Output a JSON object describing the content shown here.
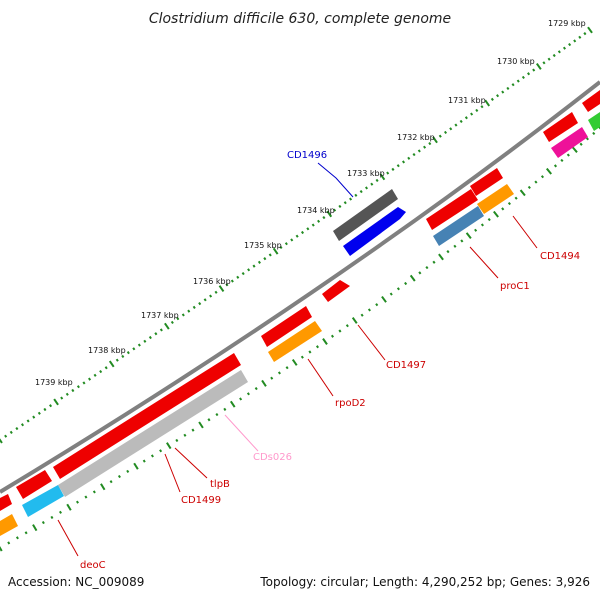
{
  "title": "Clostridium difficile 630, complete genome",
  "footer": {
    "accession": "Accession: NC_009089",
    "summary": "Topology: circular; Length: 4,290,252 bp; Genes: 3,926"
  },
  "ticks": [
    "1729 kbp",
    "1730 kbp",
    "1731 kbp",
    "1732 kbp",
    "1733 kbp",
    "1734 kbp",
    "1735 kbp",
    "1736 kbp",
    "1737 kbp",
    "1738 kbp",
    "1739 kbp"
  ],
  "colors": {
    "backbone": "#808080",
    "ruler": "#228b22",
    "cds_red": "#ee0000",
    "blue": "#0000ee",
    "dark_gray": "#555555",
    "light_gray": "#bbbbbb",
    "orange": "#ff9900",
    "steel_blue": "#4682b4",
    "cyan": "#22bbee",
    "magenta": "#ee1199",
    "green": "#33cc33",
    "label_red": "#cc0000",
    "label_blue": "#0000cc",
    "label_pink": "#ff99cc"
  },
  "labels": [
    {
      "id": "cd1496",
      "text": "CD1496",
      "color": "blue"
    },
    {
      "id": "cd1494",
      "text": "CD1494",
      "color": "red"
    },
    {
      "id": "proc1",
      "text": "proC1",
      "color": "red"
    },
    {
      "id": "cd1497",
      "text": "CD1497",
      "color": "red"
    },
    {
      "id": "rpod2",
      "text": "rpoD2",
      "color": "red"
    },
    {
      "id": "cds026",
      "text": "CDs026",
      "color": "pink"
    },
    {
      "id": "tlpb",
      "text": "tlpB",
      "color": "red"
    },
    {
      "id": "cd1499",
      "text": "CD1499",
      "color": "red"
    },
    {
      "id": "deoc",
      "text": "deoC",
      "color": "red"
    }
  ]
}
